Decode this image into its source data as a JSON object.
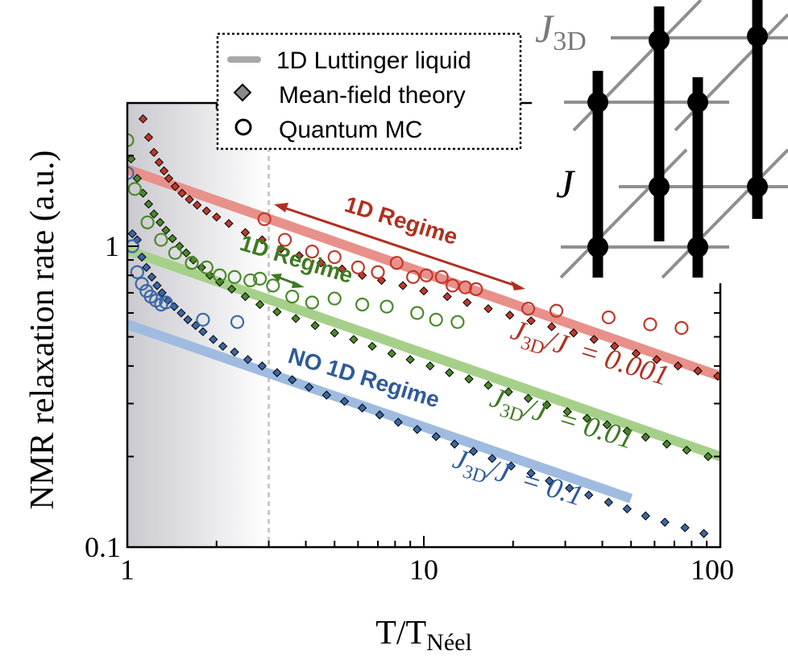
{
  "chart_data": {
    "type": "scatter",
    "xscale": "log",
    "yscale": "log",
    "xlim": [
      1,
      100
    ],
    "ylim": [
      0.1,
      4
    ],
    "x_ticks": [
      "1",
      "10",
      "100"
    ],
    "y_ticks": [
      "0.1",
      "1"
    ],
    "xlabel": "T/T",
    "xlabel_sub": "Néel",
    "ylabel": "NMR relaxation rate (a.u.)",
    "vline_x": 3,
    "legend": {
      "position": "top-center",
      "entries": [
        {
          "label": "1D Luttinger liquid",
          "marker": "line"
        },
        {
          "label": "Mean-field theory",
          "marker": "diamond"
        },
        {
          "label": "Quantum MC",
          "marker": "circle"
        }
      ]
    },
    "series": [
      {
        "color": "#c0392b",
        "line_color": "#e8908a",
        "ratio": "0.001",
        "luttinger": {
          "x": [
            1,
            100
          ],
          "y": [
            1.8,
            0.37
          ]
        },
        "mean_field": {
          "x": [
            1.13,
            1.18,
            1.23,
            1.28,
            1.33,
            1.38,
            1.45,
            1.53,
            1.62,
            1.72,
            1.85,
            2.0,
            2.2,
            2.5,
            2.85,
            3.3,
            3.8,
            4.5,
            5.3,
            6.2,
            7.2,
            8.5,
            10,
            12,
            14,
            16.5,
            19.5,
            23,
            27,
            32,
            37.5,
            44,
            52,
            61,
            72,
            84,
            98
          ],
          "y": [
            2.65,
            2.3,
            2.05,
            1.9,
            1.78,
            1.68,
            1.58,
            1.5,
            1.43,
            1.37,
            1.31,
            1.25,
            1.19,
            1.11,
            1.05,
            0.98,
            0.93,
            0.88,
            0.84,
            0.8,
            0.77,
            0.74,
            0.71,
            0.68,
            0.65,
            0.62,
            0.59,
            0.565,
            0.54,
            0.515,
            0.49,
            0.465,
            0.44,
            0.42,
            0.4,
            0.385,
            0.37
          ]
        },
        "qmc": {
          "x": [
            2.9,
            3.4,
            4.2,
            5.0,
            6.0,
            7.0,
            8.1,
            9.2,
            10.2,
            11.5,
            12.5,
            13.8,
            15.0,
            22.5,
            28,
            42,
            58,
            74
          ],
          "y": [
            1.23,
            1.05,
            0.96,
            0.92,
            0.85,
            0.82,
            0.88,
            0.79,
            0.8,
            0.79,
            0.74,
            0.73,
            0.72,
            0.62,
            0.61,
            0.58,
            0.55,
            0.535
          ]
        }
      },
      {
        "color": "#4a8a2a",
        "line_color": "#a6d08a",
        "ratio": "0.01",
        "luttinger": {
          "x": [
            1,
            100
          ],
          "y": [
            0.97,
            0.2
          ]
        },
        "mean_field": {
          "x": [
            1.03,
            1.08,
            1.13,
            1.18,
            1.23,
            1.29,
            1.35,
            1.42,
            1.5,
            1.58,
            1.67,
            1.78,
            1.9,
            2.05,
            2.25,
            2.5,
            2.8,
            3.2,
            3.7,
            4.3,
            5.0,
            5.8,
            6.7,
            7.8,
            9.0,
            10.5,
            12.2,
            14.2,
            16.5,
            19.3,
            22.5,
            26,
            30.5,
            35.5,
            41.5,
            48.5,
            56,
            66,
            77,
            91
          ],
          "y": [
            1.95,
            1.68,
            1.5,
            1.38,
            1.28,
            1.2,
            1.13,
            1.06,
            1.0,
            0.95,
            0.9,
            0.85,
            0.8,
            0.76,
            0.72,
            0.68,
            0.64,
            0.605,
            0.575,
            0.545,
            0.515,
            0.49,
            0.465,
            0.44,
            0.42,
            0.4,
            0.38,
            0.362,
            0.345,
            0.328,
            0.312,
            0.297,
            0.282,
            0.268,
            0.255,
            0.243,
            0.232,
            0.22,
            0.21,
            0.2
          ]
        },
        "qmc": {
          "x": [
            1.0,
            1.06,
            1.17,
            1.3,
            1.45,
            1.65,
            1.85,
            2.05,
            2.3,
            2.6,
            2.8,
            3.1,
            3.6,
            4.2,
            5.0,
            6.2,
            7.5,
            9.5,
            11.0,
            13.0
          ],
          "y": [
            2.25,
            1.55,
            1.2,
            1.05,
            0.95,
            0.88,
            0.85,
            0.8,
            0.79,
            0.77,
            0.78,
            0.74,
            0.68,
            0.65,
            0.67,
            0.64,
            0.63,
            0.6,
            0.57,
            0.56
          ]
        }
      },
      {
        "color": "#3a68a6",
        "line_color": "#9fbbe0",
        "ratio": "0.1",
        "luttinger": {
          "x": [
            1,
            50
          ],
          "y": [
            0.55,
            0.145
          ]
        },
        "mean_field": {
          "x": [
            1.04,
            1.08,
            1.12,
            1.16,
            1.21,
            1.26,
            1.31,
            1.37,
            1.44,
            1.52,
            1.6,
            1.7,
            1.8,
            1.95,
            2.1,
            2.3,
            2.55,
            2.85,
            3.2,
            3.6,
            4.1,
            4.7,
            5.4,
            6.2,
            7.1,
            8.2,
            9.5,
            11,
            12.7,
            14.7,
            17,
            19.7,
            23,
            26.5,
            31,
            36,
            42,
            48.5,
            56,
            65,
            76,
            88
          ],
          "y": [
            1.1,
            1.05,
            0.92,
            0.85,
            0.79,
            0.74,
            0.7,
            0.66,
            0.63,
            0.6,
            0.57,
            0.545,
            0.52,
            0.49,
            0.465,
            0.445,
            0.42,
            0.4,
            0.38,
            0.36,
            0.34,
            0.32,
            0.305,
            0.29,
            0.275,
            0.26,
            0.246,
            0.233,
            0.22,
            0.208,
            0.197,
            0.186,
            0.176,
            0.166,
            0.157,
            0.149,
            0.141,
            0.134,
            0.127,
            0.121,
            0.116,
            0.111
          ]
        },
        "qmc": {
          "x": [
            1.0,
            1.04,
            1.08,
            1.12,
            1.16,
            1.2,
            1.25,
            1.3,
            1.35,
            1.8,
            2.35
          ],
          "y": [
            1.75,
            1.0,
            0.82,
            0.75,
            0.71,
            0.68,
            0.66,
            0.64,
            0.65,
            0.57,
            0.56
          ]
        }
      }
    ],
    "annotations": [
      {
        "text": "1D Regime",
        "color": "#c0392b",
        "arrow_x": [
          3,
          22
        ],
        "arrow_y": 1.25
      },
      {
        "text": "1D Regime",
        "color": "#4a8a2a",
        "arrow_x": [
          3,
          3.9
        ],
        "arrow_y": 0.76
      },
      {
        "text": "NO 1D Regime",
        "color": "#3a68a6"
      }
    ],
    "inset": {
      "type": "lattice",
      "labels": {
        "j3d": "J",
        "j3d_sub": "3D",
        "j": "J"
      }
    }
  }
}
